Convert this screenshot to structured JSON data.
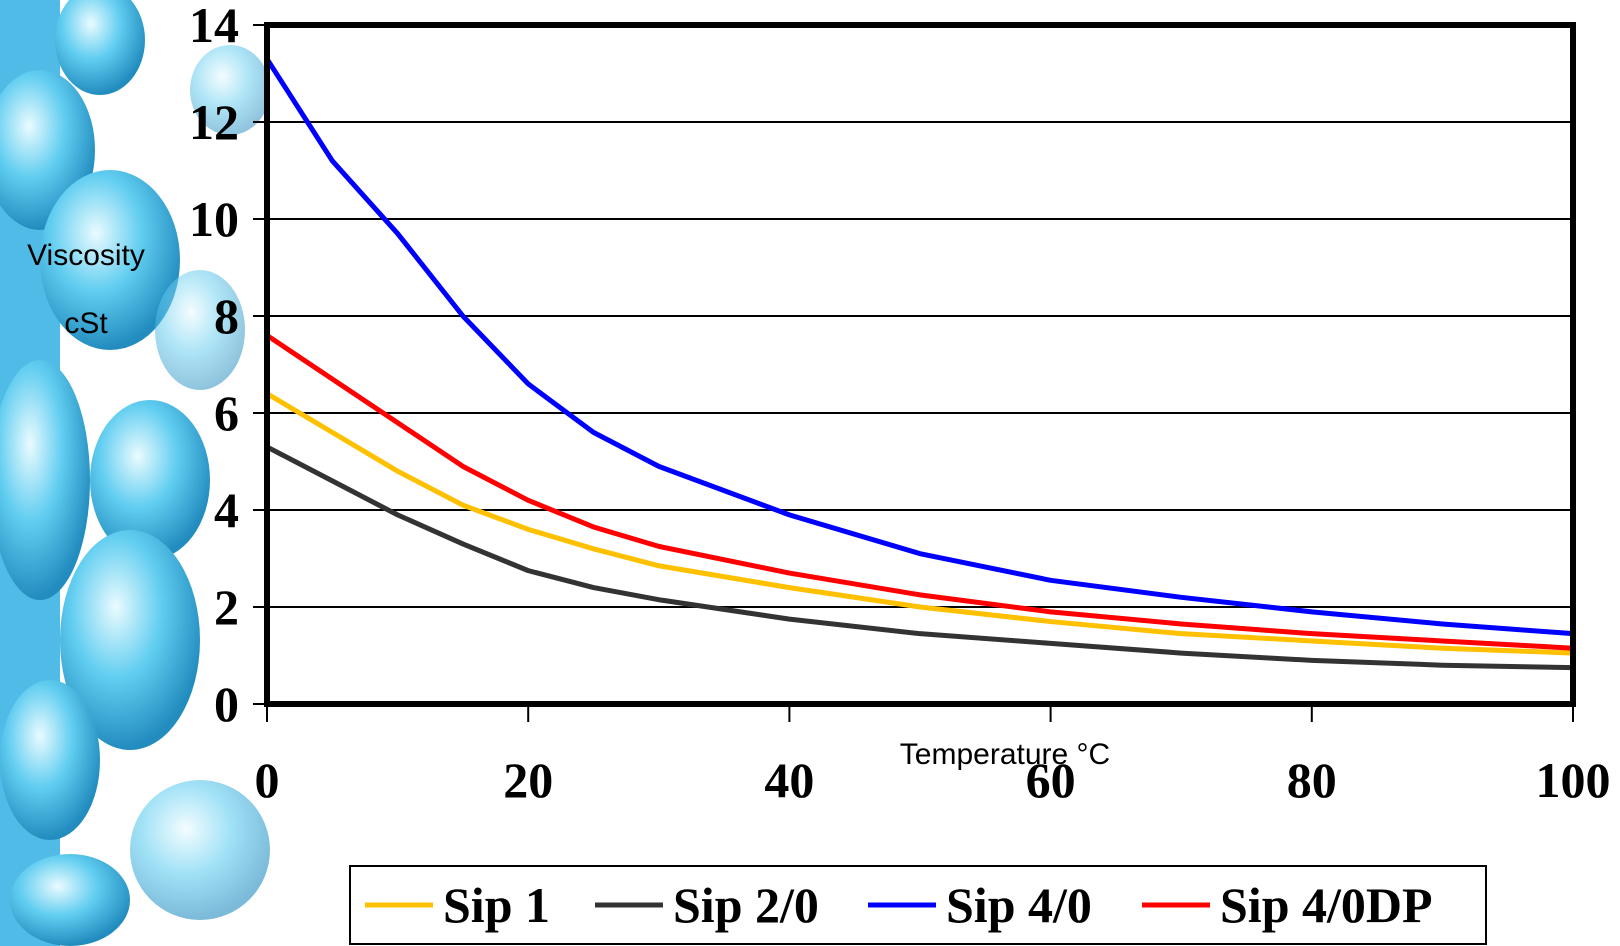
{
  "chart_data": {
    "type": "line",
    "x_label": "Temperature °C",
    "y_label_lines": [
      "Viscosity",
      "cSt"
    ],
    "x": [
      0,
      5,
      10,
      15,
      20,
      25,
      30,
      40,
      50,
      60,
      70,
      80,
      90,
      100
    ],
    "series": [
      {
        "name": "Sip 1",
        "color": "#ffc000",
        "values": [
          6.4,
          5.6,
          4.8,
          4.1,
          3.6,
          3.2,
          2.85,
          2.4,
          2.0,
          1.7,
          1.45,
          1.3,
          1.15,
          1.05
        ]
      },
      {
        "name": "Sip 2/0",
        "color": "#333333",
        "values": [
          5.3,
          4.6,
          3.9,
          3.3,
          2.75,
          2.4,
          2.15,
          1.75,
          1.45,
          1.25,
          1.05,
          0.9,
          0.8,
          0.75
        ]
      },
      {
        "name": "Sip 4/0",
        "color": "#0000ff",
        "values": [
          13.3,
          11.2,
          9.7,
          8.0,
          6.6,
          5.6,
          4.9,
          3.9,
          3.1,
          2.55,
          2.2,
          1.9,
          1.65,
          1.45
        ]
      },
      {
        "name": "Sip 4/0DP",
        "color": "#ff0000",
        "values": [
          7.6,
          6.7,
          5.8,
          4.9,
          4.2,
          3.65,
          3.25,
          2.7,
          2.25,
          1.9,
          1.65,
          1.45,
          1.3,
          1.15
        ]
      }
    ],
    "xlim": [
      0,
      100
    ],
    "xticks": [
      0,
      20,
      40,
      60,
      80,
      100
    ],
    "ylim": [
      0,
      14
    ],
    "yticks": [
      0,
      2,
      4,
      6,
      8,
      10,
      12,
      14
    ],
    "grid": true,
    "legend": "bottom"
  }
}
